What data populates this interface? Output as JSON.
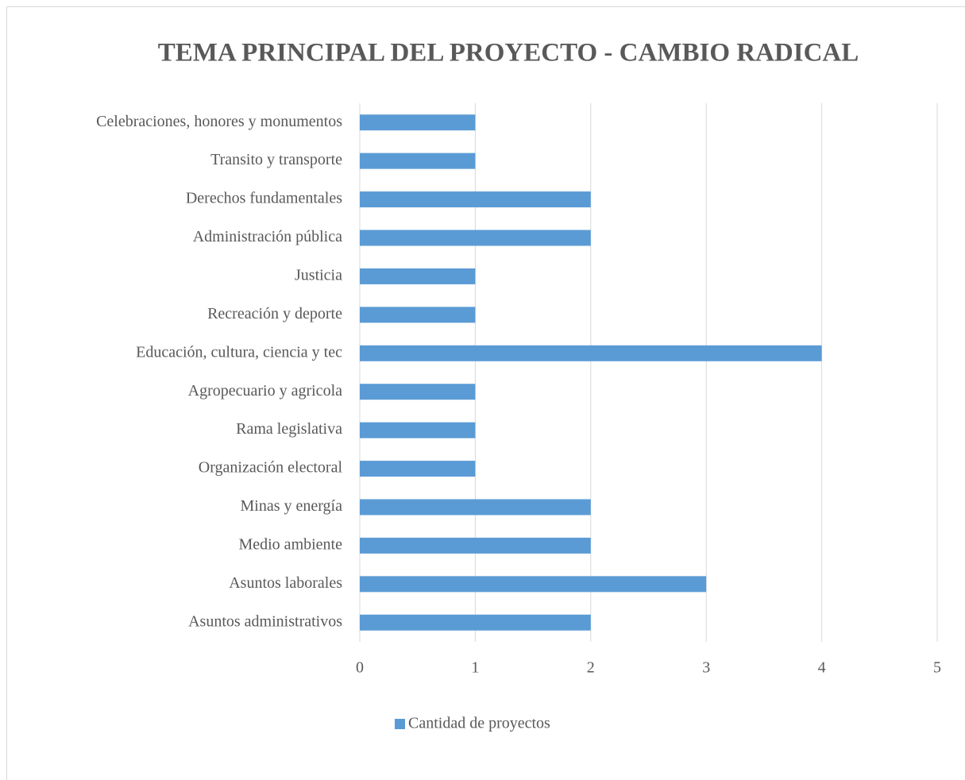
{
  "chart_data": {
    "type": "bar",
    "orientation": "horizontal",
    "title": "TEMA PRINCIPAL DEL PROYECTO - CAMBIO RADICAL",
    "categories": [
      "Celebraciones, honores y monumentos",
      "Transito y transporte",
      "Derechos fundamentales",
      "Administración pública",
      "Justicia",
      "Recreación y deporte",
      "Educación, cultura, ciencia y tec",
      "Agropecuario y agricola",
      "Rama legislativa",
      "Organización electoral",
      "Minas y energía",
      "Medio ambiente",
      "Asuntos laborales",
      "Asuntos administrativos"
    ],
    "series": [
      {
        "name": "Cantidad de proyectos",
        "color": "#5b9bd5",
        "values": [
          1,
          1,
          2,
          2,
          1,
          1,
          4,
          1,
          1,
          1,
          2,
          2,
          3,
          2
        ]
      }
    ],
    "xlim": [
      0,
      5
    ],
    "xticks": [
      0,
      1,
      2,
      3,
      4,
      5
    ],
    "grid": true,
    "legend": "bottom"
  }
}
